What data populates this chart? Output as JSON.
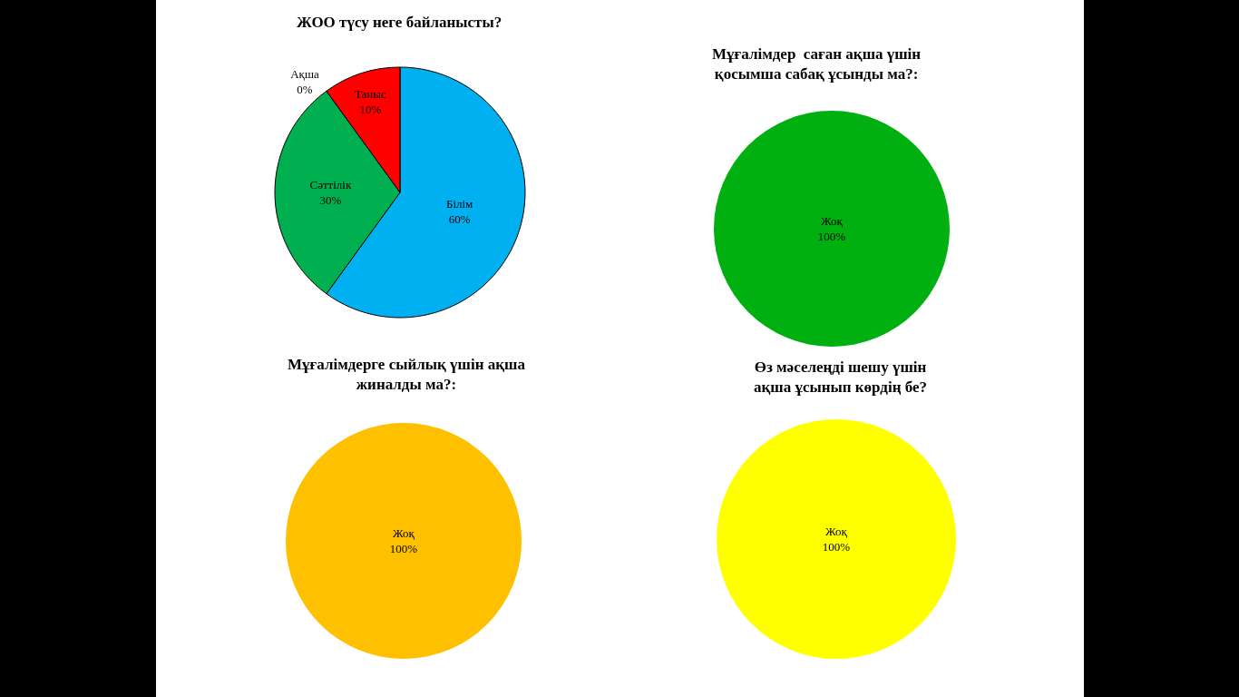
{
  "chart_data": [
    {
      "type": "pie",
      "title": "ЖОО түсу неге байланысты?",
      "categories": [
        "Білім",
        "Сәттілік",
        "Ақша",
        "Таныс"
      ],
      "values": [
        60,
        30,
        0,
        10
      ],
      "colors": [
        "#00b0f0",
        "#00b050",
        "#7030a0",
        "#ff0000"
      ],
      "value_labels": [
        "60%",
        "30%",
        "0%",
        "10%"
      ]
    },
    {
      "type": "pie",
      "title": "Мұғалімдер  саған ақша үшін\nқосымша сабақ ұсынды ма?:",
      "categories": [
        "Жоқ"
      ],
      "values": [
        100
      ],
      "colors": [
        "#00b010"
      ],
      "value_labels": [
        "100%"
      ]
    },
    {
      "type": "pie",
      "title": "Мұғалімдерге сыйлық үшін ақша\nжиналды ма?:",
      "categories": [
        "Жоқ"
      ],
      "values": [
        100
      ],
      "colors": [
        "#ffc000"
      ],
      "value_labels": [
        "100%"
      ]
    },
    {
      "type": "pie",
      "title": "Өз мәселеңді шешу үшін\nақша ұсынып көрдің бе?",
      "categories": [
        "Жоқ"
      ],
      "values": [
        100
      ],
      "colors": [
        "#ffff00"
      ],
      "value_labels": [
        "100%"
      ]
    }
  ]
}
